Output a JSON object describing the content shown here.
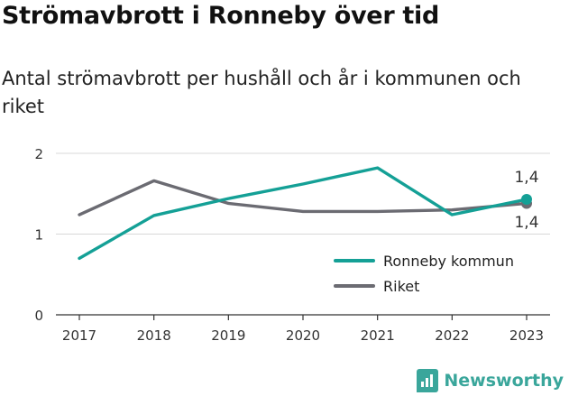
{
  "header": {
    "title": "Strömavbrott i Ronneby över tid",
    "subtitle": "Antal strömavbrott per hushåll och år i kommunen och riket"
  },
  "brand": {
    "name": "Newsworthy",
    "icon": "newsworthy-logo-icon"
  },
  "colors": {
    "ronneby": "#14a096",
    "riket": "#6b6b72",
    "grid": "#d8d8d8",
    "axis": "#333333"
  },
  "chart_data": {
    "type": "line",
    "title": "Strömavbrott i Ronneby över tid",
    "subtitle": "Antal strömavbrott per hushåll och år i kommunen och riket",
    "x": [
      "2017",
      "2018",
      "2019",
      "2020",
      "2021",
      "2022",
      "2023"
    ],
    "ylim": [
      0,
      2
    ],
    "yticks": [
      0,
      1,
      2
    ],
    "series": [
      {
        "name": "Ronneby kommun",
        "values": [
          0.7,
          1.23,
          1.44,
          1.62,
          1.82,
          1.24,
          1.43
        ],
        "end_label": "1,4"
      },
      {
        "name": "Riket",
        "values": [
          1.24,
          1.66,
          1.38,
          1.28,
          1.28,
          1.3,
          1.38
        ],
        "end_label": "1,4"
      }
    ],
    "legend_position": "right-middle",
    "grid": true
  }
}
